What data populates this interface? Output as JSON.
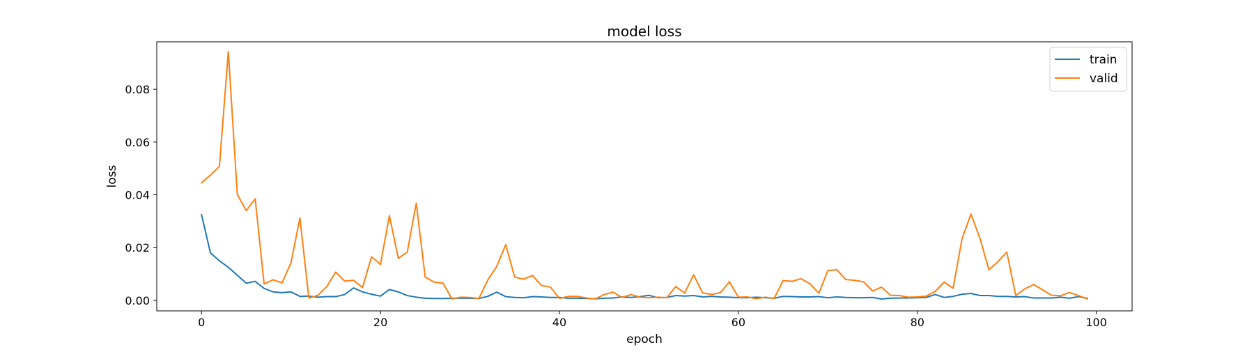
{
  "chart_data": {
    "type": "line",
    "title": "model loss",
    "xlabel": "epoch",
    "ylabel": "loss",
    "xlim": [
      -5,
      104
    ],
    "ylim": [
      -0.004,
      0.098
    ],
    "xticks": [
      0,
      20,
      40,
      60,
      80,
      100
    ],
    "yticks": [
      0.0,
      0.02,
      0.04,
      0.06,
      0.08
    ],
    "ytick_labels": [
      "0.00",
      "0.02",
      "0.04",
      "0.06",
      "0.08"
    ],
    "grid": false,
    "legend_position": "top-right",
    "x": [
      0,
      1,
      2,
      3,
      4,
      5,
      6,
      7,
      8,
      9,
      10,
      11,
      12,
      13,
      14,
      15,
      16,
      17,
      18,
      19,
      20,
      21,
      22,
      23,
      24,
      25,
      26,
      27,
      28,
      29,
      30,
      31,
      32,
      33,
      34,
      35,
      36,
      37,
      38,
      39,
      40,
      41,
      42,
      43,
      44,
      45,
      46,
      47,
      48,
      49,
      50,
      51,
      52,
      53,
      54,
      55,
      56,
      57,
      58,
      59,
      60,
      61,
      62,
      63,
      64,
      65,
      66,
      67,
      68,
      69,
      70,
      71,
      72,
      73,
      74,
      75,
      76,
      77,
      78,
      79,
      80,
      81,
      82,
      83,
      84,
      85,
      86,
      87,
      88,
      89,
      90,
      91,
      92,
      93,
      94,
      95,
      96,
      97,
      98,
      99
    ],
    "series": [
      {
        "name": "train",
        "color": "#1f77b4",
        "values": [
          0.0325,
          0.018,
          0.015,
          0.0125,
          0.0095,
          0.0065,
          0.0072,
          0.0045,
          0.0032,
          0.0029,
          0.0032,
          0.0015,
          0.0016,
          0.0012,
          0.0014,
          0.0014,
          0.0022,
          0.0047,
          0.0032,
          0.0023,
          0.0016,
          0.0041,
          0.0032,
          0.0018,
          0.0012,
          0.0008,
          0.0007,
          0.0007,
          0.0008,
          0.0008,
          0.0008,
          0.0007,
          0.0015,
          0.0031,
          0.0014,
          0.0011,
          0.001,
          0.0014,
          0.0013,
          0.0011,
          0.0011,
          0.0008,
          0.0008,
          0.0007,
          0.0006,
          0.0008,
          0.0009,
          0.0013,
          0.0011,
          0.0014,
          0.0019,
          0.001,
          0.0011,
          0.0018,
          0.0016,
          0.0018,
          0.0013,
          0.0015,
          0.0013,
          0.0012,
          0.001,
          0.001,
          0.0012,
          0.001,
          0.0008,
          0.0015,
          0.0014,
          0.0013,
          0.0013,
          0.0014,
          0.001,
          0.0013,
          0.0011,
          0.001,
          0.001,
          0.0011,
          0.0005,
          0.0008,
          0.0009,
          0.0009,
          0.001,
          0.0011,
          0.0022,
          0.0011,
          0.0015,
          0.0023,
          0.0026,
          0.0018,
          0.0018,
          0.0015,
          0.0015,
          0.0013,
          0.0014,
          0.0009,
          0.0009,
          0.0009,
          0.0012,
          0.0008,
          0.0014,
          0.0008
        ]
      },
      {
        "name": "valid",
        "color": "#ff7f0e",
        "values": [
          0.0445,
          0.0475,
          0.0507,
          0.0943,
          0.0402,
          0.034,
          0.0385,
          0.0062,
          0.0078,
          0.0066,
          0.0142,
          0.0312,
          0.0008,
          0.0019,
          0.0052,
          0.0107,
          0.0073,
          0.0076,
          0.0048,
          0.0165,
          0.0136,
          0.0321,
          0.0159,
          0.0183,
          0.0368,
          0.0088,
          0.0069,
          0.0065,
          0.0005,
          0.0012,
          0.0011,
          0.0007,
          0.0077,
          0.0129,
          0.0211,
          0.0088,
          0.008,
          0.0094,
          0.0056,
          0.005,
          0.0007,
          0.0015,
          0.0015,
          0.0009,
          0.0005,
          0.0022,
          0.0031,
          0.0011,
          0.0022,
          0.0012,
          0.001,
          0.0012,
          0.001,
          0.0052,
          0.0028,
          0.0097,
          0.0028,
          0.0022,
          0.0029,
          0.007,
          0.0012,
          0.0013,
          0.0006,
          0.0012,
          0.0007,
          0.0075,
          0.0072,
          0.0082,
          0.0063,
          0.0027,
          0.0113,
          0.0116,
          0.0079,
          0.0076,
          0.007,
          0.0035,
          0.005,
          0.0019,
          0.0018,
          0.0012,
          0.0013,
          0.0016,
          0.0034,
          0.0069,
          0.0046,
          0.0234,
          0.0327,
          0.0235,
          0.0116,
          0.0146,
          0.0183,
          0.0018,
          0.0043,
          0.006,
          0.004,
          0.0019,
          0.0017,
          0.003,
          0.0018,
          0.0005
        ]
      }
    ]
  }
}
